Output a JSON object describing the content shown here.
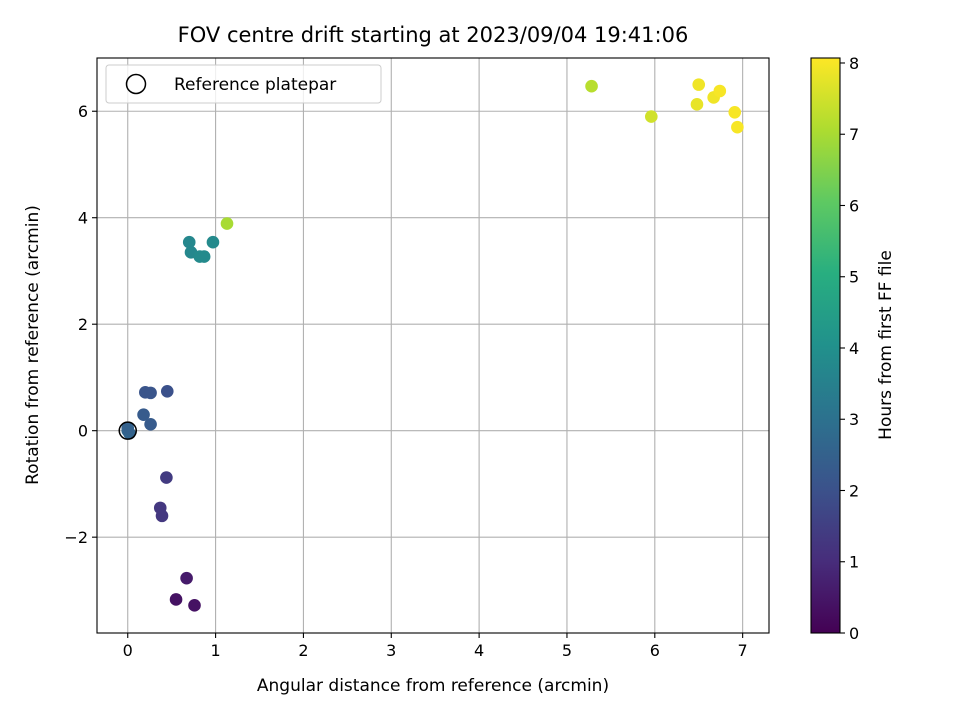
{
  "chart_data": {
    "type": "scatter",
    "title": "FOV centre drift starting at 2023/09/04 19:41:06",
    "xlabel": "Angular distance from reference (arcmin)",
    "ylabel": "Rotation from reference (arcmin)",
    "xlim": [
      -0.35,
      7.3
    ],
    "ylim": [
      -3.8,
      7.0
    ],
    "xticks": [
      0,
      1,
      2,
      3,
      4,
      5,
      6,
      7
    ],
    "yticks": [
      -2,
      0,
      2,
      4,
      6
    ],
    "xtick_labels": [
      "0",
      "1",
      "2",
      "3",
      "4",
      "5",
      "6",
      "7"
    ],
    "ytick_labels": [
      "−2",
      "0",
      "2",
      "4",
      "6"
    ],
    "grid": true,
    "legend": {
      "placement": "top-left",
      "entries": [
        {
          "label": "Reference platepar",
          "marker": "open-circle",
          "color": "#000000"
        }
      ]
    },
    "reference_point": {
      "x": 0,
      "y": 0
    },
    "colorbar": {
      "label": "Hours from first FF file",
      "range": [
        0,
        8.07
      ],
      "ticks": [
        0,
        1,
        2,
        3,
        4,
        5,
        6,
        7,
        8
      ],
      "tick_labels": [
        "0",
        "1",
        "2",
        "3",
        "4",
        "5",
        "6",
        "7",
        "8"
      ],
      "colormap": "viridis"
    },
    "points": [
      {
        "x": 0.0,
        "y": 0.0,
        "h": 2.7
      },
      {
        "x": 0.02,
        "y": -0.05,
        "h": 2.6
      },
      {
        "x": 0.0,
        "y": 0.05,
        "h": 2.5
      },
      {
        "x": 0.18,
        "y": 0.3,
        "h": 2.3
      },
      {
        "x": 0.26,
        "y": 0.12,
        "h": 2.3
      },
      {
        "x": 0.2,
        "y": 0.72,
        "h": 2.1
      },
      {
        "x": 0.26,
        "y": 0.71,
        "h": 2.1
      },
      {
        "x": 0.45,
        "y": 0.74,
        "h": 2.0
      },
      {
        "x": 0.44,
        "y": -0.88,
        "h": 1.4
      },
      {
        "x": 0.37,
        "y": -1.45,
        "h": 1.3
      },
      {
        "x": 0.39,
        "y": -1.6,
        "h": 1.3
      },
      {
        "x": 0.67,
        "y": -2.77,
        "h": 0.6
      },
      {
        "x": 0.55,
        "y": -3.17,
        "h": 0.4
      },
      {
        "x": 0.76,
        "y": -3.28,
        "h": 0.4
      },
      {
        "x": 0.7,
        "y": 3.54,
        "h": 3.7
      },
      {
        "x": 0.72,
        "y": 3.35,
        "h": 3.7
      },
      {
        "x": 0.82,
        "y": 3.27,
        "h": 3.8
      },
      {
        "x": 0.87,
        "y": 3.27,
        "h": 3.8
      },
      {
        "x": 0.97,
        "y": 3.54,
        "h": 3.8
      },
      {
        "x": 1.13,
        "y": 3.89,
        "h": 7.0
      },
      {
        "x": 5.28,
        "y": 6.47,
        "h": 7.2
      },
      {
        "x": 5.96,
        "y": 5.9,
        "h": 7.5
      },
      {
        "x": 6.48,
        "y": 6.13,
        "h": 7.8
      },
      {
        "x": 6.5,
        "y": 6.5,
        "h": 7.9
      },
      {
        "x": 6.67,
        "y": 6.26,
        "h": 7.9
      },
      {
        "x": 6.74,
        "y": 6.38,
        "h": 8.0
      },
      {
        "x": 6.91,
        "y": 5.98,
        "h": 8.0
      },
      {
        "x": 6.94,
        "y": 5.7,
        "h": 8.0
      }
    ]
  }
}
